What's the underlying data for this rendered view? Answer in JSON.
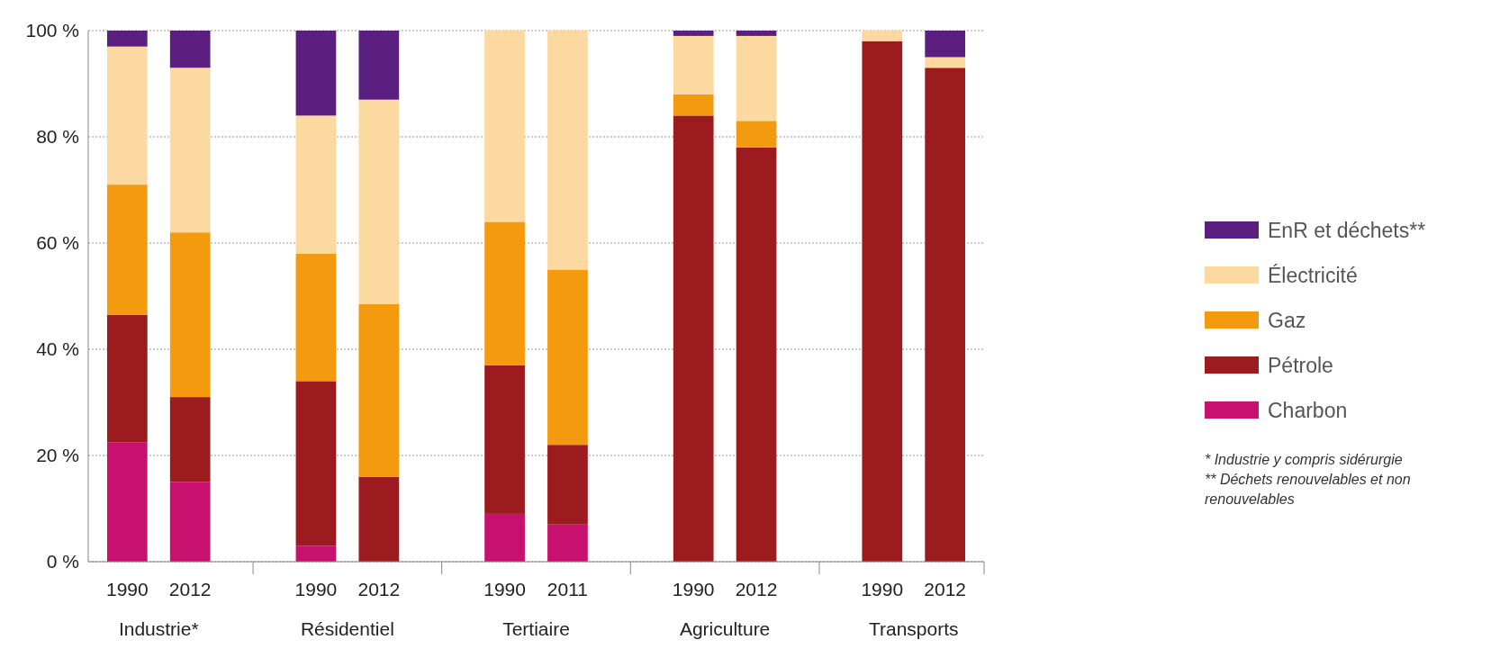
{
  "chart_data": {
    "type": "bar",
    "stacked": true,
    "categories": [
      "1990",
      "2012",
      null,
      "1990",
      "2012",
      null,
      "1990",
      "2011",
      null,
      "1990",
      "2012",
      null,
      "1990",
      "2012"
    ],
    "series": [
      {
        "name": "Charbon",
        "color": "#c8106e",
        "values": [
          22.5,
          15,
          null,
          3,
          0,
          null,
          9,
          7,
          null,
          0,
          0,
          null,
          0,
          0
        ]
      },
      {
        "name": "Pétrole",
        "color": "#9b1b1e",
        "values": [
          24,
          16,
          null,
          31,
          16,
          null,
          28,
          15,
          null,
          84,
          78,
          null,
          98,
          93
        ]
      },
      {
        "name": "Gaz",
        "color": "#f39a0f",
        "values": [
          24.5,
          31,
          null,
          24,
          32.5,
          null,
          27,
          33,
          null,
          4,
          5,
          null,
          0,
          0
        ]
      },
      {
        "name": "Électricité",
        "color": "#fbd9a0",
        "values": [
          26,
          31,
          null,
          26,
          38.5,
          null,
          36,
          45,
          null,
          11,
          16,
          null,
          2,
          2
        ]
      },
      {
        "name": "EnR et déchets**",
        "color": "#5b1f7f",
        "values": [
          3,
          7,
          null,
          16,
          13,
          null,
          0,
          0,
          null,
          1,
          1,
          null,
          0,
          5
        ]
      }
    ],
    "ylim": [
      0,
      100
    ],
    "yticks": [
      {
        "value": 0,
        "label": "0 %"
      },
      {
        "value": 20,
        "label": "20 %"
      },
      {
        "value": 40,
        "label": "40 %"
      },
      {
        "value": 60,
        "label": "60 %"
      },
      {
        "value": 80,
        "label": "80 %"
      },
      {
        "value": 100,
        "label": "100 %"
      }
    ],
    "grid": "y",
    "legend": "right",
    "annotations": [
      "Industrie*",
      "Résidentiel",
      "Tertiaire",
      "Agriculture",
      "Transports",
      "* Industrie y compris sidérurgie",
      "** Déchets renouvelables et non renouvelables"
    ]
  }
}
